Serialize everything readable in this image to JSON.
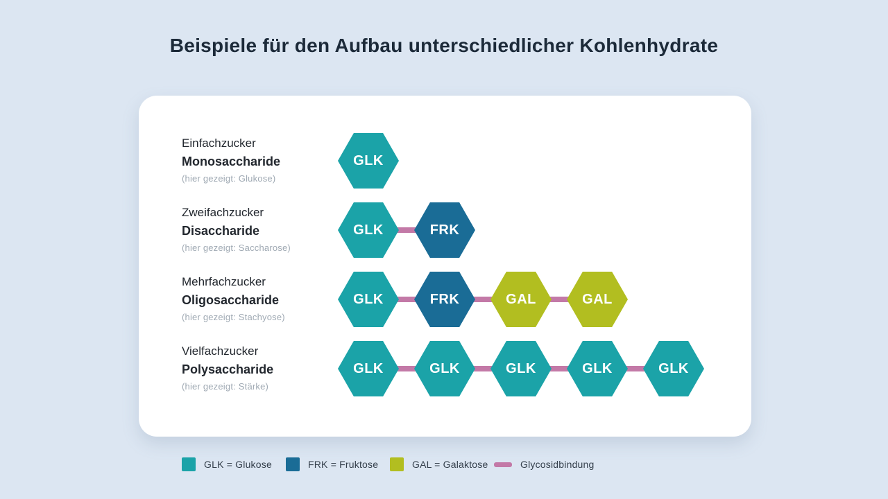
{
  "title": "Beispiele für den Aufbau unterschiedlicher Kohlenhydrate",
  "colors": {
    "background": "#dce6f2",
    "card": "#ffffff",
    "title_text": "#1c2a39",
    "label_text": "#22272e",
    "muted_text": "#9fa9b3",
    "legend_text": "#333e4a",
    "bond": "#c379a7",
    "units": {
      "GLK": "#1ba3a8",
      "FRK": "#1a6c96",
      "GAL": "#b2be20"
    }
  },
  "rows": [
    {
      "name": "Einfachzucker",
      "class_name": "Monosaccharide",
      "example": "(hier gezeigt: Glukose)",
      "units": [
        "GLK"
      ]
    },
    {
      "name": "Zweifachzucker",
      "class_name": "Disaccharide",
      "example": "(hier gezeigt: Saccharose)",
      "units": [
        "GLK",
        "FRK"
      ]
    },
    {
      "name": "Mehrfachzucker",
      "class_name": "Oligosaccharide",
      "example": "(hier gezeigt: Stachyose)",
      "units": [
        "GLK",
        "FRK",
        "GAL",
        "GAL"
      ]
    },
    {
      "name": "Vielfachzucker",
      "class_name": "Polysaccharide",
      "example": "(hier gezeigt: Stärke)",
      "units": [
        "GLK",
        "GLK",
        "GLK",
        "GLK",
        "GLK"
      ]
    }
  ],
  "legend": {
    "items": [
      {
        "swatch": "square",
        "unit": "GLK",
        "label": "GLK = Glukose"
      },
      {
        "swatch": "square",
        "unit": "FRK",
        "label": "FRK = Fruktose"
      },
      {
        "swatch": "square",
        "unit": "GAL",
        "label": "GAL = Galaktose"
      },
      {
        "swatch": "line",
        "unit": "BOND",
        "label": "Glycosidbindung"
      }
    ]
  }
}
